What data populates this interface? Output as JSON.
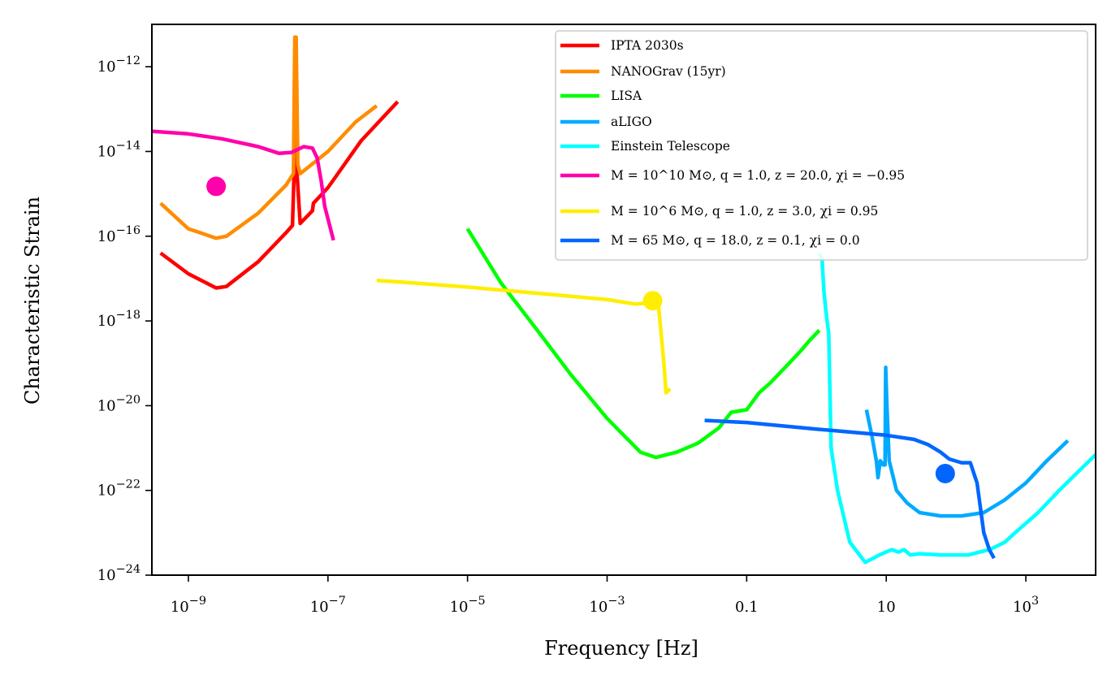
{
  "chart_data": {
    "type": "line",
    "title": "",
    "xlabel": "Frequency [Hz]",
    "ylabel": "Characteristic Strain",
    "xscale": "log",
    "yscale": "log",
    "xlim": [
      3e-10,
      10000
    ],
    "ylim": [
      1e-24,
      1e-11
    ],
    "grid": false,
    "legend_position": "upper right",
    "xticks": [
      {
        "value": 1e-09,
        "label": "10^{-9}"
      },
      {
        "value": 1e-07,
        "label": "10^{-7}"
      },
      {
        "value": 1e-05,
        "label": "10^{-5}"
      },
      {
        "value": 0.001,
        "label": "10^{-3}"
      },
      {
        "value": 0.1,
        "label": "0.1"
      },
      {
        "value": 10,
        "label": "10"
      },
      {
        "value": 1000,
        "label": "10^{3}"
      }
    ],
    "yticks": [
      {
        "value": 1e-24,
        "label": "10^{-24}"
      },
      {
        "value": 1e-22,
        "label": "10^{-22}"
      },
      {
        "value": 1e-20,
        "label": "10^{-20}"
      },
      {
        "value": 1e-18,
        "label": "10^{-18}"
      },
      {
        "value": 1e-16,
        "label": "10^{-16}"
      },
      {
        "value": 1e-14,
        "label": "10^{-14}"
      },
      {
        "value": 1e-12,
        "label": "10^{-12}"
      }
    ],
    "legend": [
      {
        "label": "IPTA  2030s",
        "color": "#ff0000"
      },
      {
        "label": "NANOGrav (15yr)",
        "color": "#ff8c00"
      },
      {
        "label": "LISA",
        "color": "#00ff00"
      },
      {
        "label": "aLIGO",
        "color": "#00aaff"
      },
      {
        "label": "Einstein Telescope",
        "color": "#00ffff"
      },
      {
        "label": "M = 10^10 M⊙, q = 1.0, z = 20.0, χi = −0.95",
        "color": "#ff00aa"
      },
      {
        "label": "M = 10^6 M⊙, q = 1.0, z = 3.0, χi = 0.95",
        "color": "#ffee00"
      },
      {
        "label": "M = 65 M⊙, q = 18.0, z = 0.1, χi = 0.0",
        "color": "#0066ff"
      }
    ],
    "series": [
      {
        "name": "IPTA  2030s",
        "color": "#ff0000",
        "x": [
          4e-10,
          1e-09,
          2.5e-09,
          3.5e-09,
          1e-08,
          2.5e-08,
          3.1e-08,
          3.3e-08,
          3.4e-08,
          3.6e-08,
          4e-08,
          6e-08,
          6.2e-08,
          1e-07,
          3e-07,
          1e-06
        ],
        "y": [
          4e-17,
          1.3e-17,
          6e-18,
          6.5e-18,
          2.5e-17,
          1.2e-16,
          1.8e-16,
          5e-15,
          2e-14,
          3e-15,
          2e-16,
          4e-16,
          6e-16,
          1.4e-15,
          1.8e-14,
          1.5e-13
        ]
      },
      {
        "name": "NANOGrav (15yr)",
        "color": "#ff8c00",
        "x": [
          4e-10,
          1e-09,
          2.5e-09,
          3.5e-09,
          1e-08,
          2.5e-08,
          3.2e-08,
          3.35e-08,
          3.5e-08,
          3.7e-08,
          4e-08,
          1e-07,
          2.5e-07,
          5e-07
        ],
        "y": [
          6e-16,
          1.5e-16,
          9e-17,
          1e-16,
          3.5e-16,
          1.6e-15,
          3e-15,
          5e-12,
          5e-12,
          5e-15,
          3e-15,
          1e-14,
          5e-14,
          1.2e-13
        ]
      },
      {
        "name": "LISA",
        "color": "#00ff00",
        "x": [
          1e-05,
          3e-05,
          0.0001,
          0.0003,
          0.001,
          0.003,
          0.005,
          0.01,
          0.02,
          0.04,
          0.06,
          0.1,
          0.15,
          0.22,
          0.3,
          0.45,
          0.6,
          0.8,
          1.1
        ],
        "y": [
          1.5e-16,
          8e-18,
          6e-19,
          5.5e-20,
          5e-21,
          8e-22,
          6e-22,
          8e-22,
          1.3e-21,
          3e-21,
          7e-21,
          8e-21,
          2e-20,
          3.5e-20,
          6e-20,
          1.2e-19,
          2e-19,
          3.5e-19,
          6e-19
        ]
      },
      {
        "name": "aLIGO",
        "color": "#00aaff",
        "x": [
          5.2,
          6.2,
          7.2,
          7.6,
          8.2,
          9,
          9.6,
          9.8,
          10.2,
          11,
          14,
          20,
          30,
          60,
          120,
          250,
          500,
          1000,
          2000,
          4000
        ],
        "y": [
          8e-21,
          2e-21,
          5e-22,
          2e-22,
          5e-22,
          4e-22,
          4e-22,
          8e-20,
          1e-20,
          5e-22,
          1e-22,
          5e-23,
          3e-23,
          2.5e-23,
          2.5e-23,
          3e-23,
          6e-23,
          1.5e-22,
          5e-22,
          1.5e-21
        ]
      },
      {
        "name": "Einstein Telescope",
        "color": "#00ffff",
        "x": [
          1.1,
          1.2,
          1.28,
          1.35,
          1.42,
          1.5,
          1.62,
          2,
          3,
          5,
          8,
          12,
          15,
          18,
          22,
          30,
          60,
          150,
          300,
          400,
          500,
          700,
          1500,
          3000,
          10000
        ],
        "y": [
          4e-17,
          3e-17,
          5e-18,
          2e-18,
          1e-18,
          5e-19,
          1e-21,
          1e-22,
          6e-24,
          2e-24,
          3e-24,
          4e-24,
          3.5e-24,
          4e-24,
          3e-24,
          3.2e-24,
          3e-24,
          3e-24,
          4e-24,
          5e-24,
          6e-24,
          1e-23,
          3e-23,
          1e-22,
          7e-22
        ]
      },
      {
        "name": "M = 10^10 M⊙, q = 1.0, z = 20.0, χi = −0.95",
        "color": "#ff00aa",
        "x": [
          3e-10,
          1e-09,
          3e-09,
          1e-08,
          2e-08,
          3e-08,
          4.5e-08,
          6e-08,
          7e-08,
          8e-08,
          9e-08,
          1.2e-07
        ],
        "y": [
          3e-14,
          2.6e-14,
          2e-14,
          1.3e-14,
          9e-15,
          9.5e-15,
          1.3e-14,
          1.2e-14,
          7e-15,
          2e-15,
          5e-16,
          8e-17
        ]
      },
      {
        "name": "M = 10^6 M⊙, q = 1.0, z = 3.0, χi = 0.95",
        "color": "#ffee00",
        "x": [
          5e-07,
          1e-06,
          1e-05,
          0.0001,
          0.001,
          0.0025,
          0.0035,
          0.0045,
          0.005,
          0.0055,
          0.0065,
          0.007,
          0.008
        ],
        "y": [
          9e-18,
          8.4e-18,
          6.3e-18,
          4.5e-18,
          3.2e-18,
          2.5e-18,
          2.6e-18,
          3e-18,
          2.8e-18,
          2e-18,
          1e-19,
          2e-20,
          2.5e-20
        ]
      },
      {
        "name": "M = 65 M⊙, q = 18.0, z = 0.1, χi = 0.0",
        "color": "#0066ff",
        "x": [
          0.025,
          0.1,
          1,
          10,
          25,
          40,
          60,
          80,
          120,
          160,
          200,
          250,
          300,
          350
        ],
        "y": [
          4.5e-21,
          4e-21,
          2.8e-21,
          2e-21,
          1.6e-21,
          1.2e-21,
          8e-22,
          5.5e-22,
          4.5e-22,
          4.5e-22,
          1.5e-22,
          1e-23,
          4e-24,
          2.5e-24
        ]
      }
    ],
    "markers": [
      {
        "name": "M = 10^10 M⊙ source",
        "x": 2.5e-09,
        "y": 1.5e-15,
        "color": "#ff00aa"
      },
      {
        "name": "M = 10^6 M⊙ source",
        "x": 0.0045,
        "y": 3e-18,
        "color": "#ffee00"
      },
      {
        "name": "M = 65 M⊙ source",
        "x": 70,
        "y": 2.5e-22,
        "color": "#0066ff"
      }
    ]
  }
}
